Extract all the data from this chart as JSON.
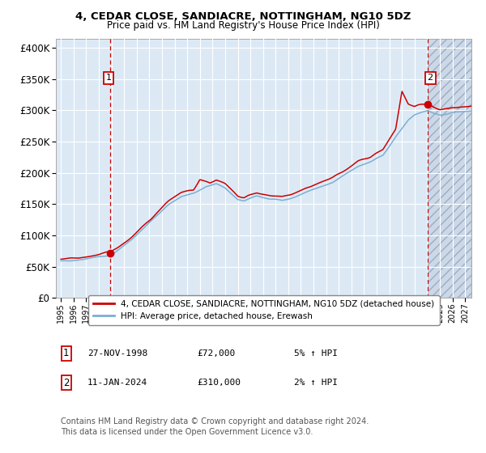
{
  "title1": "4, CEDAR CLOSE, SANDIACRE, NOTTINGHAM, NG10 5DZ",
  "title2": "Price paid vs. HM Land Registry's House Price Index (HPI)",
  "ylabel_ticks": [
    "£0",
    "£50K",
    "£100K",
    "£150K",
    "£200K",
    "£250K",
    "£300K",
    "£350K",
    "£400K"
  ],
  "ytick_values": [
    0,
    50000,
    100000,
    150000,
    200000,
    250000,
    300000,
    350000,
    400000
  ],
  "xlim_start": 1994.6,
  "xlim_end": 2027.5,
  "ylim_min": 0,
  "ylim_max": 415000,
  "sale1_date": 1998.92,
  "sale1_price": 72000,
  "sale2_date": 2024.04,
  "sale2_price": 310000,
  "legend_line1": "4, CEDAR CLOSE, SANDIACRE, NOTTINGHAM, NG10 5DZ (detached house)",
  "legend_line2": "HPI: Average price, detached house, Erewash",
  "ann1_box": "1",
  "ann1_date": "27-NOV-1998",
  "ann1_price": "£72,000",
  "ann1_hpi": "5% ↑ HPI",
  "ann2_box": "2",
  "ann2_date": "11-JAN-2024",
  "ann2_price": "£310,000",
  "ann2_hpi": "2% ↑ HPI",
  "footnote1": "Contains HM Land Registry data © Crown copyright and database right 2024.",
  "footnote2": "This data is licensed under the Open Government Licence v3.0.",
  "hpi_color": "#7bafd4",
  "price_color": "#cc0000",
  "bg_color": "#dce9f5",
  "grid_color": "#ffffff",
  "dashed_line_color": "#cc0000",
  "future_bg": "#ccd8e8"
}
